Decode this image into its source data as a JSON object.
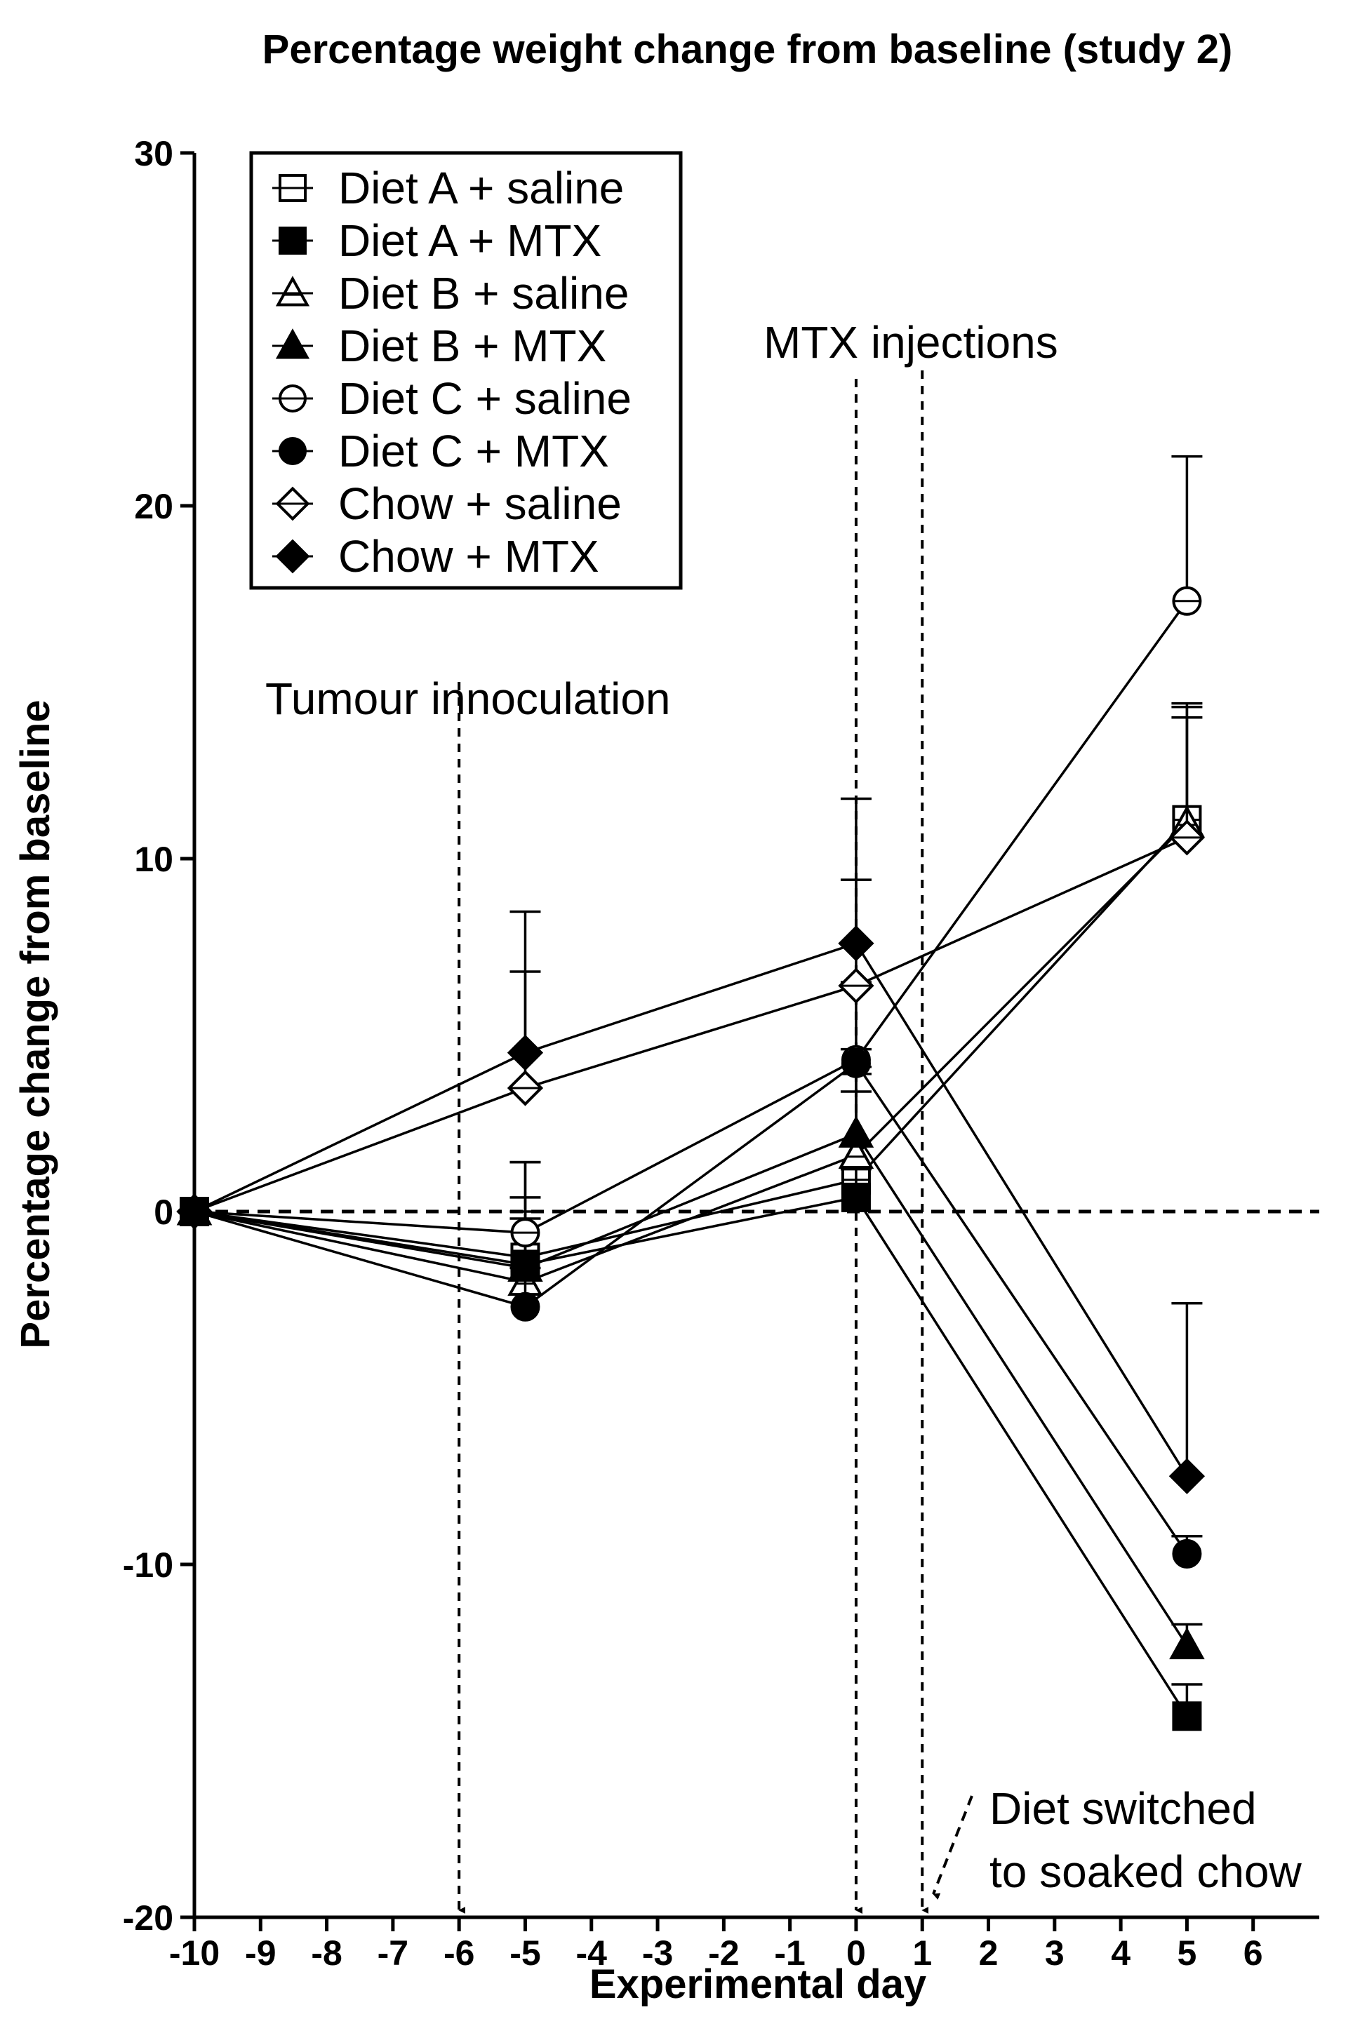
{
  "chart_data": {
    "type": "line",
    "title": "Percentage weight change from baseline (study 2)",
    "xlabel": "Experimental day",
    "ylabel": "Percentage change from baseline",
    "xlim": [
      -10,
      7
    ],
    "ylim": [
      -20,
      30
    ],
    "x_ticks": [
      -10,
      -9,
      -8,
      -7,
      -6,
      -5,
      -4,
      -3,
      -2,
      -1,
      0,
      1,
      2,
      3,
      4,
      5,
      6
    ],
    "x_tick_labels": [
      "-10",
      "-9",
      "-8",
      "-7",
      "-6",
      "-5",
      "-4",
      "-3",
      "-2",
      "-1",
      "0",
      "1",
      "2",
      "3",
      "4",
      "5",
      "6"
    ],
    "y_ticks": [
      -20,
      -10,
      0,
      10,
      20,
      30
    ],
    "y_tick_labels": [
      "-20",
      "-10",
      "0",
      "10",
      "20",
      "30"
    ],
    "x": [
      -10,
      -5,
      0,
      5
    ],
    "series": [
      {
        "name": "Diet A + saline",
        "marker": "square-open",
        "values": [
          0,
          -1.3,
          0.9,
          11.1
        ],
        "errors": [
          0,
          2.7,
          2.5,
          3.2
        ]
      },
      {
        "name": "Diet A + MTX",
        "marker": "square-filled",
        "values": [
          0,
          -1.5,
          0.4,
          -14.3
        ],
        "errors": [
          0,
          1.3,
          0.8,
          0.9
        ]
      },
      {
        "name": "Diet B + saline",
        "marker": "triangle-open",
        "values": [
          0,
          -2.0,
          1.6,
          11.0
        ],
        "errors": [
          0,
          2.4,
          2.3,
          3.0
        ]
      },
      {
        "name": "Diet B + MTX",
        "marker": "triangle-filled",
        "values": [
          0,
          -1.6,
          2.2,
          -12.3
        ],
        "errors": [
          0,
          1.6,
          1.9,
          0.6
        ]
      },
      {
        "name": "Diet C + saline",
        "marker": "circle-open",
        "values": [
          0,
          -0.6,
          4.3,
          17.3
        ],
        "errors": [
          0,
          2.0,
          2.2,
          4.1
        ]
      },
      {
        "name": "Diet C + MTX",
        "marker": "circle-filled",
        "values": [
          0,
          -2.7,
          4.2,
          -9.7
        ],
        "errors": [
          0,
          1.1,
          0.4,
          0.5
        ]
      },
      {
        "name": "Chow + saline",
        "marker": "diamond-open",
        "values": [
          0,
          3.5,
          6.4,
          10.6
        ],
        "errors": [
          0,
          3.3,
          3.0,
          3.8
        ]
      },
      {
        "name": "Chow + MTX",
        "marker": "diamond-filled",
        "values": [
          0,
          4.5,
          7.6,
          -7.5
        ],
        "errors": [
          0,
          4.0,
          4.1,
          4.9
        ]
      }
    ],
    "reference_lines": [
      {
        "orientation": "horizontal",
        "value": 0,
        "style": "dashed"
      }
    ],
    "event_markers": [
      {
        "x": -6,
        "label": "Tumour innoculation"
      },
      {
        "x": 0,
        "label": "MTX injections"
      },
      {
        "x": 1,
        "label": ""
      }
    ],
    "annotations": [
      {
        "lines": [
          "Diet switched",
          "to soaked chow"
        ],
        "points_to_x": 1
      }
    ],
    "legend": {
      "position": "top-left",
      "inside": true,
      "boxed": true
    }
  }
}
